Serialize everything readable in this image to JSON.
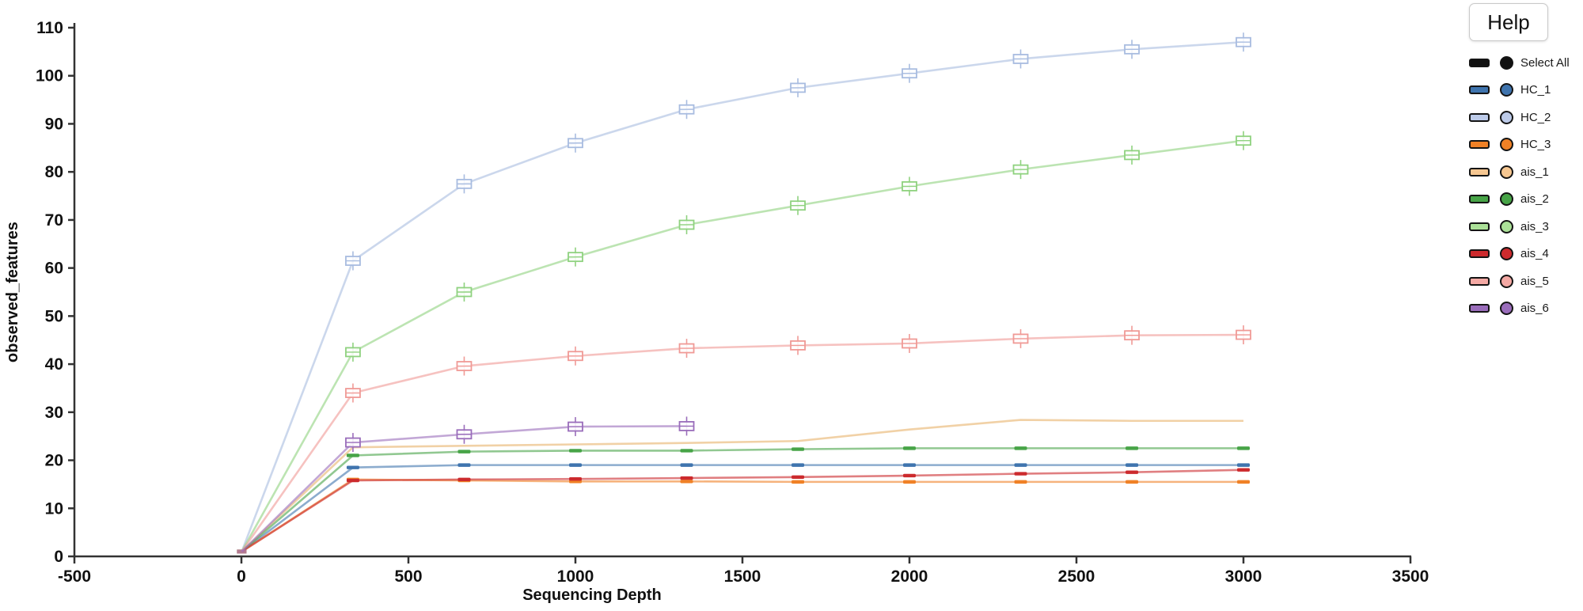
{
  "help_button": {
    "label": "Help"
  },
  "legend": {
    "select_all": {
      "label": "Select All",
      "color": "#111111"
    },
    "items": [
      {
        "label": "HC_1",
        "color": "#3f74ae"
      },
      {
        "label": "HC_2",
        "color": "#bdcbe9"
      },
      {
        "label": "HC_3",
        "color": "#f08126"
      },
      {
        "label": "ais_1",
        "color": "#f6c791"
      },
      {
        "label": "ais_2",
        "color": "#47a447"
      },
      {
        "label": "ais_3",
        "color": "#abe098"
      },
      {
        "label": "ais_4",
        "color": "#cc2a2d"
      },
      {
        "label": "ais_5",
        "color": "#f4a9a4"
      },
      {
        "label": "ais_6",
        "color": "#9a6dbb"
      }
    ]
  },
  "chart_data": {
    "type": "line",
    "title": "",
    "xlabel": "Sequencing Depth",
    "ylabel": "observed_features",
    "xlim": [
      -500,
      3500
    ],
    "ylim": [
      0,
      110
    ],
    "x_ticks": [
      -500,
      0,
      500,
      1000,
      1500,
      2000,
      2500,
      3000,
      3500
    ],
    "y_ticks": [
      0,
      10,
      20,
      30,
      40,
      50,
      60,
      70,
      80,
      90,
      100,
      110
    ],
    "grid": false,
    "legend_position": "right",
    "depths": [
      1,
      334,
      667,
      1000,
      1333,
      1666,
      2000,
      2333,
      2666,
      3000
    ],
    "series": [
      {
        "name": "HC_1",
        "color": "#3f74ae",
        "marker": "dash",
        "x": [
          1,
          334,
          667,
          1000,
          1333,
          1666,
          2000,
          2333,
          2666,
          3000
        ],
        "values": [
          1,
          18.5,
          19,
          19,
          19,
          19,
          19,
          19,
          19,
          19
        ]
      },
      {
        "name": "HC_2",
        "color": "#a8bce0",
        "marker": "box",
        "x": [
          1,
          334,
          667,
          1000,
          1333,
          1666,
          2000,
          2333,
          2666,
          3000
        ],
        "values": [
          1,
          61.5,
          77.5,
          86,
          93,
          97.5,
          100.5,
          103.5,
          105.5,
          107
        ]
      },
      {
        "name": "HC_3",
        "color": "#f08126",
        "marker": "dash",
        "x": [
          1,
          334,
          667,
          1000,
          1333,
          1666,
          2000,
          2333,
          2666,
          3000
        ],
        "values": [
          1,
          16,
          15.8,
          15.6,
          15.6,
          15.5,
          15.5,
          15.5,
          15.5,
          15.5
        ]
      },
      {
        "name": "ais_1",
        "color": "#e8b36a",
        "marker": "none",
        "x": [
          1,
          334,
          667,
          1000,
          1333,
          1666,
          2000,
          2333,
          2666,
          3000
        ],
        "values": [
          1,
          22.7,
          23,
          23.3,
          23.6,
          24,
          26.4,
          28.4,
          28.2,
          28.2
        ]
      },
      {
        "name": "ais_2",
        "color": "#47a447",
        "marker": "dash",
        "x": [
          1,
          334,
          667,
          1000,
          1333,
          1666,
          2000,
          2333,
          2666,
          3000
        ],
        "values": [
          1,
          21,
          21.8,
          22,
          22,
          22.3,
          22.5,
          22.5,
          22.5,
          22.5
        ]
      },
      {
        "name": "ais_3",
        "color": "#8fd27f",
        "marker": "box",
        "x": [
          1,
          334,
          667,
          1000,
          1333,
          1666,
          2000,
          2333,
          2666,
          3000
        ],
        "values": [
          1,
          42.5,
          55,
          62.3,
          69,
          73,
          77,
          80.5,
          83.5,
          86.5
        ]
      },
      {
        "name": "ais_4",
        "color": "#cc2a2d",
        "marker": "dash",
        "x": [
          1,
          334,
          667,
          1000,
          1333,
          1666,
          2000,
          2333,
          2666,
          3000
        ],
        "values": [
          1,
          15.8,
          16,
          16.1,
          16.3,
          16.5,
          16.8,
          17.2,
          17.5,
          18
        ]
      },
      {
        "name": "ais_5",
        "color": "#f09a96",
        "marker": "box",
        "x": [
          1,
          334,
          667,
          1000,
          1333,
          1666,
          2000,
          2333,
          2666,
          3000
        ],
        "values": [
          1,
          34,
          39.6,
          41.7,
          43.3,
          43.9,
          44.3,
          45.3,
          46,
          46.1
        ]
      },
      {
        "name": "ais_6",
        "color": "#9a6dbb",
        "marker": "box",
        "x": [
          1,
          334,
          667,
          1000,
          1333
        ],
        "values": [
          1,
          23.7,
          25.4,
          27,
          27.1
        ]
      }
    ]
  }
}
